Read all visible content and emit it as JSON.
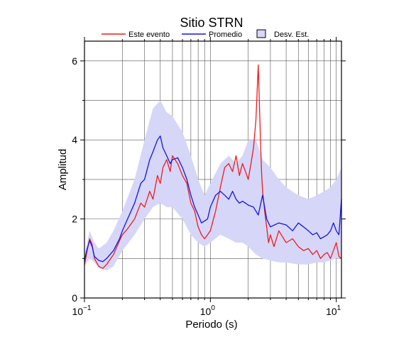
{
  "chart_data": {
    "type": "line",
    "title": "Sitio STRN",
    "xlabel": "Periodo (s)",
    "ylabel": "Amplitud",
    "x_scale": "log",
    "xlim": [
      0.1,
      11
    ],
    "ylim": [
      0,
      6.5
    ],
    "grid": true,
    "legend_position": "top",
    "x_ticks": [
      {
        "value": 0.1,
        "base": "10",
        "exp": "−1"
      },
      {
        "value": 1,
        "base": "10",
        "exp": "0"
      },
      {
        "value": 10,
        "base": "10",
        "exp": "1"
      }
    ],
    "y_ticks": [
      0,
      2,
      4,
      6
    ],
    "legend": [
      {
        "label": "Este evento",
        "type": "line",
        "color": "#ee1c1c"
      },
      {
        "label": "Promedio",
        "type": "line",
        "color": "#1414e6"
      },
      {
        "label": "Desv. Est.",
        "type": "band",
        "color": "#d6d6f8"
      }
    ],
    "series": [
      {
        "name": "Este evento",
        "color": "#ee1c1c",
        "x": [
          0.1,
          0.105,
          0.11,
          0.115,
          0.12,
          0.13,
          0.14,
          0.15,
          0.17,
          0.19,
          0.2,
          0.22,
          0.25,
          0.28,
          0.3,
          0.33,
          0.35,
          0.38,
          0.4,
          0.42,
          0.45,
          0.48,
          0.5,
          0.55,
          0.6,
          0.65,
          0.7,
          0.75,
          0.8,
          0.85,
          0.9,
          0.95,
          1.0,
          1.1,
          1.2,
          1.3,
          1.4,
          1.5,
          1.6,
          1.7,
          1.8,
          1.9,
          2.0,
          2.1,
          2.2,
          2.3,
          2.4,
          2.5,
          2.55,
          2.6,
          2.7,
          2.8,
          2.9,
          3.0,
          3.2,
          3.5,
          4.0,
          4.5,
          5.0,
          5.5,
          6.0,
          6.5,
          7.0,
          7.5,
          8.0,
          8.5,
          9.0,
          9.5,
          10.0,
          10.5,
          11.0
        ],
        "values": [
          0.85,
          1.2,
          1.5,
          1.35,
          1.0,
          0.8,
          0.75,
          0.85,
          1.1,
          1.45,
          1.6,
          1.75,
          2.0,
          2.4,
          2.3,
          2.7,
          2.5,
          3.1,
          2.9,
          3.3,
          3.5,
          3.2,
          3.6,
          3.4,
          3.1,
          2.9,
          2.4,
          2.2,
          1.8,
          1.6,
          1.5,
          1.6,
          1.7,
          2.2,
          2.8,
          3.3,
          3.4,
          3.2,
          3.6,
          3.1,
          3.4,
          3.2,
          3.0,
          3.4,
          3.8,
          4.5,
          5.9,
          4.0,
          3.2,
          2.7,
          2.2,
          1.8,
          1.4,
          1.6,
          1.3,
          1.7,
          1.4,
          1.5,
          1.3,
          1.2,
          1.25,
          1.1,
          1.2,
          1.0,
          1.1,
          1.15,
          1.0,
          1.2,
          1.4,
          1.05,
          1.0
        ]
      },
      {
        "name": "Promedio",
        "color": "#1414e6",
        "x": [
          0.1,
          0.105,
          0.11,
          0.115,
          0.12,
          0.13,
          0.14,
          0.15,
          0.17,
          0.19,
          0.2,
          0.22,
          0.25,
          0.28,
          0.3,
          0.33,
          0.35,
          0.38,
          0.4,
          0.42,
          0.45,
          0.48,
          0.5,
          0.55,
          0.6,
          0.65,
          0.7,
          0.75,
          0.8,
          0.85,
          0.9,
          0.95,
          1.0,
          1.1,
          1.2,
          1.3,
          1.4,
          1.5,
          1.6,
          1.7,
          1.8,
          1.9,
          2.0,
          2.2,
          2.4,
          2.6,
          2.8,
          3.0,
          3.5,
          4.0,
          4.5,
          5.0,
          5.5,
          6.0,
          6.5,
          7.0,
          7.5,
          8.0,
          8.5,
          9.0,
          9.5,
          10.0,
          10.5,
          11.0
        ],
        "values": [
          0.95,
          1.25,
          1.45,
          1.3,
          1.05,
          0.95,
          0.92,
          1.0,
          1.2,
          1.5,
          1.7,
          2.0,
          2.4,
          2.9,
          3.0,
          3.5,
          3.7,
          4.0,
          4.1,
          3.8,
          3.6,
          3.4,
          3.5,
          3.55,
          3.3,
          3.0,
          2.6,
          2.3,
          2.1,
          1.9,
          1.95,
          2.0,
          2.3,
          2.6,
          2.7,
          2.6,
          2.5,
          2.7,
          2.5,
          2.4,
          2.45,
          2.4,
          2.35,
          2.3,
          2.1,
          2.6,
          2.0,
          1.8,
          1.9,
          1.85,
          1.7,
          1.9,
          1.8,
          1.7,
          1.6,
          1.65,
          1.5,
          1.55,
          1.6,
          1.7,
          1.9,
          1.7,
          1.6,
          2.5
        ]
      }
    ],
    "band": {
      "name": "Desv. Est.",
      "color": "#d6d6f8",
      "x": [
        0.1,
        0.11,
        0.12,
        0.13,
        0.15,
        0.17,
        0.2,
        0.25,
        0.3,
        0.35,
        0.4,
        0.45,
        0.5,
        0.6,
        0.7,
        0.8,
        0.9,
        1.0,
        1.2,
        1.4,
        1.6,
        1.8,
        2.0,
        2.3,
        2.6,
        3.0,
        3.5,
        4.0,
        5.0,
        6.0,
        7.0,
        8.0,
        9.0,
        10.0,
        11.0
      ],
      "upper": [
        1.1,
        1.7,
        1.4,
        1.25,
        1.4,
        1.7,
        2.2,
        3.0,
        4.0,
        4.8,
        5.0,
        4.7,
        4.6,
        4.2,
        3.6,
        3.0,
        2.6,
        2.9,
        3.4,
        3.6,
        3.4,
        3.6,
        4.0,
        4.0,
        3.5,
        3.3,
        3.0,
        2.8,
        2.6,
        2.5,
        2.6,
        2.7,
        2.8,
        3.0,
        3.3
      ],
      "lower": [
        0.8,
        1.0,
        0.9,
        0.75,
        0.7,
        0.8,
        1.2,
        1.6,
        2.0,
        2.3,
        2.4,
        2.3,
        2.3,
        2.0,
        1.6,
        1.4,
        1.3,
        1.4,
        1.6,
        1.5,
        1.4,
        1.4,
        1.3,
        1.1,
        1.0,
        0.95,
        0.9,
        0.9,
        0.85,
        0.85,
        0.9,
        0.9,
        0.95,
        1.0,
        1.0
      ]
    }
  }
}
